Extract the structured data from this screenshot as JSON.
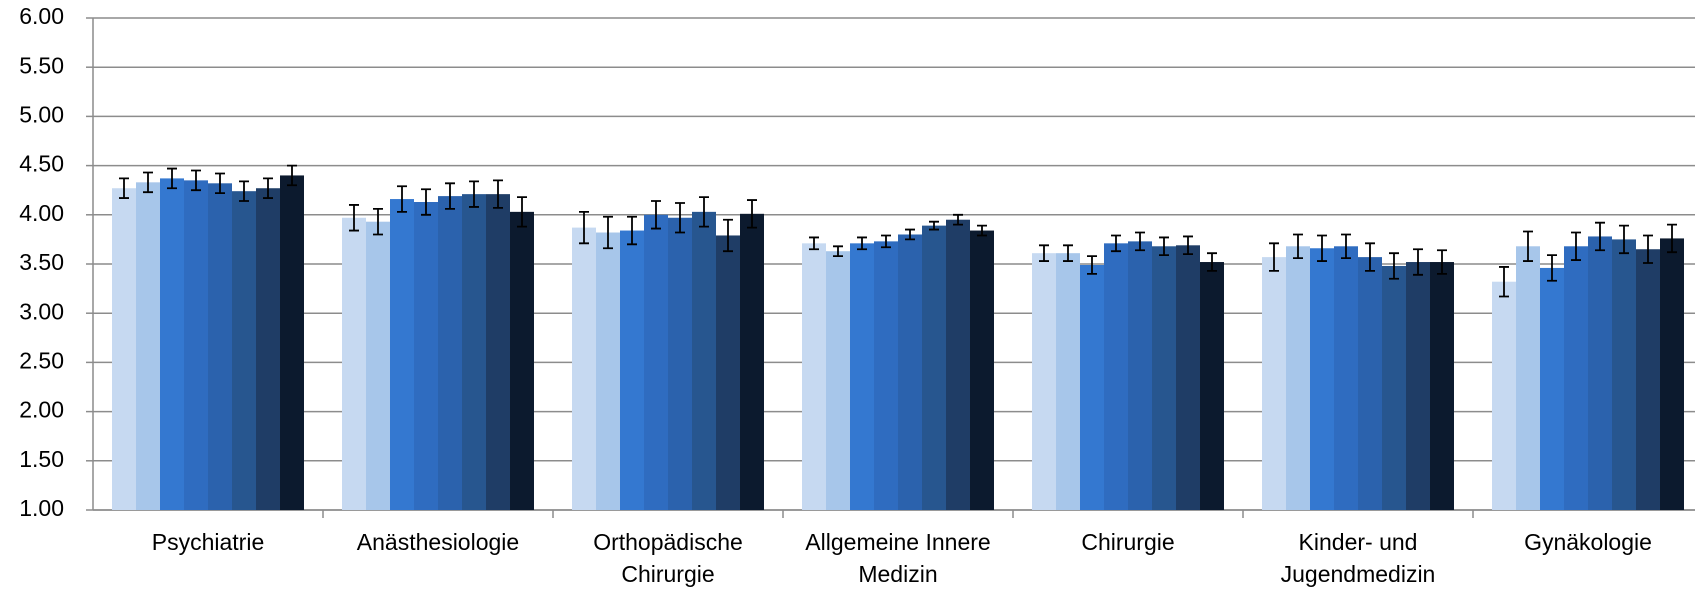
{
  "chart_data": {
    "type": "bar",
    "categories": [
      "Psychiatrie",
      "Anästhesiologie",
      "Orthopädische Chirurgie",
      "Allgemeine Innere Medizin",
      "Chirurgie",
      "Kinder- und Jugendmedizin",
      "Gynäkologie"
    ],
    "series": [
      {
        "color": "#c6d9f1",
        "values": [
          4.27,
          3.97,
          3.87,
          3.71,
          3.61,
          3.57,
          3.32
        ],
        "errors": [
          0.1,
          0.13,
          0.16,
          0.06,
          0.08,
          0.14,
          0.15
        ]
      },
      {
        "color": "#a7c6ea",
        "values": [
          4.33,
          3.93,
          3.82,
          3.63,
          3.61,
          3.68,
          3.68
        ],
        "errors": [
          0.1,
          0.13,
          0.16,
          0.05,
          0.08,
          0.12,
          0.15
        ]
      },
      {
        "color": "#3478d0",
        "values": [
          4.37,
          4.16,
          3.84,
          3.71,
          3.49,
          3.66,
          3.46
        ],
        "errors": [
          0.1,
          0.13,
          0.14,
          0.06,
          0.09,
          0.13,
          0.13
        ]
      },
      {
        "color": "#2f6cc0",
        "values": [
          4.35,
          4.13,
          4.0,
          3.73,
          3.71,
          3.68,
          3.68
        ],
        "errors": [
          0.1,
          0.13,
          0.14,
          0.06,
          0.08,
          0.12,
          0.14
        ]
      },
      {
        "color": "#2b62ad",
        "values": [
          4.32,
          4.19,
          3.97,
          3.8,
          3.73,
          3.57,
          3.78
        ],
        "errors": [
          0.1,
          0.13,
          0.15,
          0.05,
          0.09,
          0.14,
          0.14
        ]
      },
      {
        "color": "#27568f",
        "values": [
          4.24,
          4.21,
          4.03,
          3.89,
          3.68,
          3.48,
          3.75
        ],
        "errors": [
          0.1,
          0.13,
          0.15,
          0.04,
          0.09,
          0.13,
          0.14
        ]
      },
      {
        "color": "#1f3d66",
        "values": [
          4.27,
          4.21,
          3.79,
          3.95,
          3.69,
          3.52,
          3.65
        ],
        "errors": [
          0.1,
          0.14,
          0.16,
          0.05,
          0.09,
          0.13,
          0.14
        ]
      },
      {
        "color": "#0c1a2e",
        "values": [
          4.4,
          4.03,
          4.01,
          3.84,
          3.52,
          3.52,
          3.76
        ],
        "errors": [
          0.1,
          0.15,
          0.14,
          0.05,
          0.09,
          0.12,
          0.14
        ]
      }
    ],
    "ylim": [
      1,
      6
    ],
    "yticks": [
      {
        "value": 1,
        "label": "1.00"
      },
      {
        "value": 1.5,
        "label": "1.50"
      },
      {
        "value": 2,
        "label": "2.00"
      },
      {
        "value": 2.5,
        "label": "2.50"
      },
      {
        "value": 3,
        "label": "3.00"
      },
      {
        "value": 3.5,
        "label": "3.50"
      },
      {
        "value": 4,
        "label": "4.00"
      },
      {
        "value": 4.5,
        "label": "4.50"
      },
      {
        "value": 5,
        "label": "5.00"
      },
      {
        "value": 5.5,
        "label": "5.50"
      },
      {
        "value": 6,
        "label": "6.00"
      }
    ],
    "grid": true
  }
}
